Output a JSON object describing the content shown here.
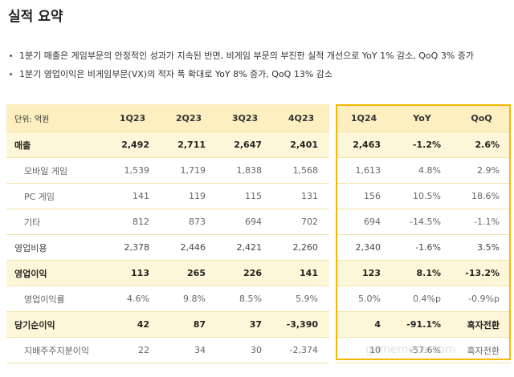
{
  "header": {
    "title": "실적 요약"
  },
  "bullets": [
    "1분기 매출은 게임부문의 안정적인 성과가 지속된 반면, 비게임 부문의 부진한 실적 개선으로 YoY 1% 감소, QoQ 3% 증가",
    "1분기 영업이익은 비게임부문(VX)의 적자 폭 확대로 YoY 8% 증가, QoQ 13% 감소"
  ],
  "table": {
    "columns": [
      "단위: 억원",
      "1Q23",
      "2Q23",
      "3Q23",
      "4Q23",
      "1Q24",
      "YoY",
      "QoQ"
    ],
    "rows": [
      [
        "매출",
        "2,492",
        "2,711",
        "2,647",
        "2,401",
        "2,463",
        "-1.2%",
        "2.6%"
      ],
      [
        "모바일 게임",
        "1,539",
        "1,719",
        "1,838",
        "1,568",
        "1,613",
        "4.8%",
        "2.9%"
      ],
      [
        "PC 게임",
        "141",
        "119",
        "115",
        "131",
        "156",
        "10.5%",
        "18.6%"
      ],
      [
        "기타",
        "812",
        "873",
        "694",
        "702",
        "694",
        "-14.5%",
        "-1.1%"
      ],
      [
        "영업비용",
        "2,378",
        "2,446",
        "2,421",
        "2,260",
        "2,340",
        "-1.6%",
        "3.5%"
      ],
      [
        "영업이익",
        "113",
        "265",
        "226",
        "141",
        "123",
        "8.1%",
        "-13.2%"
      ],
      [
        "영업이익률",
        "4.6%",
        "9.8%",
        "8.5%",
        "5.9%",
        "5.0%",
        "0.4%p",
        "-0.9%p"
      ],
      [
        "당기순이익",
        "42",
        "87",
        "37",
        "-3,390",
        "4",
        "-91.1%",
        "흑자전환"
      ],
      [
        "지배주주지분이익",
        "22",
        "34",
        "30",
        "-2,374",
        "10",
        "-57.6%",
        "흑자전환"
      ]
    ]
  },
  "watermark": "gamemeca.com"
}
